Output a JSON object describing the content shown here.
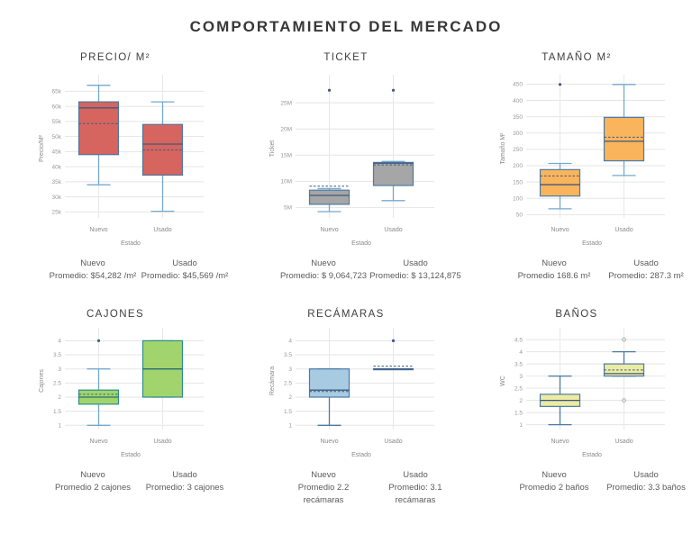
{
  "page": {
    "title": "COMPORTAMIENTO DEL MERCADO"
  },
  "chart_data": [
    {
      "type": "box",
      "title": "PRECIO/ M²",
      "y_label": "Precio/M²",
      "x_label": "Estado",
      "categories": [
        "Nuevo",
        "Usado"
      ],
      "y_min": 23000,
      "y_max": 69000,
      "y_ticks": [
        {
          "v": 25000,
          "label": "25k"
        },
        {
          "v": 30000,
          "label": "30k"
        },
        {
          "v": 35000,
          "label": "35k"
        },
        {
          "v": 40000,
          "label": "40k"
        },
        {
          "v": 45000,
          "label": "45k"
        },
        {
          "v": 50000,
          "label": "50k"
        },
        {
          "v": 55000,
          "label": "55k"
        },
        {
          "v": 60000,
          "label": "60k"
        },
        {
          "v": 65000,
          "label": "65k"
        }
      ],
      "colors": {
        "fill": "#d5655e",
        "stroke": "#53759c",
        "whisker": "#74a9cf",
        "median": "#3d5a80",
        "outlier_style": "dot"
      },
      "boxes": [
        {
          "category": "Nuevo",
          "whisker_low": 34000,
          "q1": 44000,
          "median": 59500,
          "q3": 61500,
          "whisker_high": 67000,
          "mean": 54282,
          "outliers": []
        },
        {
          "category": "Usado",
          "whisker_low": 25200,
          "q1": 37200,
          "median": 47500,
          "q3": 54000,
          "whisker_high": 61500,
          "mean": 45569,
          "outliers": []
        }
      ],
      "footer": [
        {
          "name": "Nuevo",
          "promedio": "Promedio: $54,282 /m²"
        },
        {
          "name": "Usado",
          "promedio": "Promedio: $45,569 /m²"
        }
      ]
    },
    {
      "type": "box",
      "title": "TICKET",
      "y_label": "Ticket",
      "x_label": "Estado",
      "categories": [
        "Nuevo",
        "Usado"
      ],
      "y_min": 3000000,
      "y_max": 29500000,
      "y_ticks": [
        {
          "v": 5000000,
          "label": "5M"
        },
        {
          "v": 10000000,
          "label": "10M"
        },
        {
          "v": 15000000,
          "label": "15M"
        },
        {
          "v": 20000000,
          "label": "20M"
        },
        {
          "v": 25000000,
          "label": "25M"
        }
      ],
      "colors": {
        "fill": "#a6a6a6",
        "stroke": "#4a7ba6",
        "whisker": "#74a9cf",
        "median": "#3d5a80",
        "outlier_style": "dot"
      },
      "boxes": [
        {
          "category": "Nuevo",
          "whisker_low": 4200000,
          "q1": 5600000,
          "median": 7300000,
          "q3": 8300000,
          "whisker_high": 8600000,
          "mean": 9064723,
          "outliers": [
            27400000
          ]
        },
        {
          "category": "Usado",
          "whisker_low": 6300000,
          "q1": 9200000,
          "median": 13450000,
          "q3": 13600000,
          "whisker_high": 13800000,
          "mean": 13124875,
          "outliers": [
            27400000
          ]
        }
      ],
      "footer": [
        {
          "name": "Nuevo",
          "promedio": "Promedio: $ 9,064,723"
        },
        {
          "name": "Usado",
          "promedio": "Promedio: $ 13,124,875"
        }
      ]
    },
    {
      "type": "box",
      "title": "TAMAÑO M²",
      "y_label": "Tamaño M²",
      "x_label": "Estado",
      "categories": [
        "Nuevo",
        "Usado"
      ],
      "y_min": 40,
      "y_max": 465,
      "y_ticks": [
        {
          "v": 50,
          "label": "50"
        },
        {
          "v": 100,
          "label": "100"
        },
        {
          "v": 150,
          "label": "150"
        },
        {
          "v": 200,
          "label": "200"
        },
        {
          "v": 250,
          "label": "250"
        },
        {
          "v": 300,
          "label": "300"
        },
        {
          "v": 350,
          "label": "350"
        },
        {
          "v": 400,
          "label": "400"
        },
        {
          "v": 450,
          "label": "450"
        }
      ],
      "colors": {
        "fill": "#f9b45c",
        "stroke": "#4a7ba6",
        "whisker": "#74a9cf",
        "median": "#3d5a80",
        "outlier_style": "dot"
      },
      "boxes": [
        {
          "category": "Nuevo",
          "whisker_low": 68,
          "q1": 107,
          "median": 142,
          "q3": 188,
          "whisker_high": 207,
          "mean": 168.6,
          "outliers": [
            449
          ]
        },
        {
          "category": "Usado",
          "whisker_low": 170,
          "q1": 215,
          "median": 275,
          "q3": 348,
          "whisker_high": 449,
          "mean": 287.3,
          "outliers": []
        }
      ],
      "footer": [
        {
          "name": "Nuevo",
          "promedio": "Promedio 168.6 m²"
        },
        {
          "name": "Usado",
          "promedio": "Promedio: 287.3 m²"
        }
      ]
    },
    {
      "type": "box",
      "title": "CAJONES",
      "y_label": "Cajones",
      "x_label": "Estado",
      "categories": [
        "Nuevo",
        "Usado"
      ],
      "y_min": 0.85,
      "y_max": 4.3,
      "y_ticks": [
        {
          "v": 1,
          "label": "1"
        },
        {
          "v": 1.5,
          "label": "1.5"
        },
        {
          "v": 2,
          "label": "2"
        },
        {
          "v": 2.5,
          "label": "2.5"
        },
        {
          "v": 3,
          "label": "3"
        },
        {
          "v": 3.5,
          "label": "3.5"
        },
        {
          "v": 4,
          "label": "4"
        }
      ],
      "colors": {
        "fill": "#a2d46e",
        "stroke": "#2e8b8b",
        "whisker": "#74a9cf",
        "median": "#2c6e6e",
        "outlier_style": "dot"
      },
      "boxes": [
        {
          "category": "Nuevo",
          "whisker_low": 1,
          "q1": 1.75,
          "median": 2,
          "q3": 2.25,
          "whisker_high": 3,
          "mean": 2.1,
          "outliers": [
            4
          ]
        },
        {
          "category": "Usado",
          "whisker_low": 2,
          "q1": 2,
          "median": 3,
          "q3": 4,
          "whisker_high": 4,
          "mean": 3,
          "outliers": []
        }
      ],
      "footer": [
        {
          "name": "Nuevo",
          "promedio": "Promedio 2 cajones"
        },
        {
          "name": "Usado",
          "promedio": "Promedio: 3 cajones"
        }
      ]
    },
    {
      "type": "box",
      "title": "RECÁMARAS",
      "y_label": "Recámara",
      "x_label": "Estado",
      "categories": [
        "Nuevo",
        "Usado"
      ],
      "y_min": 0.85,
      "y_max": 4.3,
      "y_ticks": [
        {
          "v": 1,
          "label": "1"
        },
        {
          "v": 1.5,
          "label": "1.5"
        },
        {
          "v": 2,
          "label": "2"
        },
        {
          "v": 2.5,
          "label": "2.5"
        },
        {
          "v": 3,
          "label": "3"
        },
        {
          "v": 3.5,
          "label": "3.5"
        },
        {
          "v": 4,
          "label": "4"
        }
      ],
      "colors": {
        "fill": "#a9cbe2",
        "stroke": "#4a7ba6",
        "whisker": "#4a7ba6",
        "median": "#3d5a80",
        "outlier_style": "dot"
      },
      "boxes": [
        {
          "category": "Nuevo",
          "whisker_low": 1,
          "q1": 2,
          "median": 2.25,
          "q3": 3,
          "whisker_high": 3,
          "mean": 2.2,
          "outliers": []
        },
        {
          "category": "Usado",
          "whisker_low": 3,
          "q1": 3,
          "median": 3,
          "q3": 3,
          "whisker_high": 3,
          "mean": 3.1,
          "outliers": [
            4
          ]
        }
      ],
      "footer": [
        {
          "name": "Nuevo",
          "promedio": "Promedio 2.2 recámaras"
        },
        {
          "name": "Usado",
          "promedio": "Promedio: 3.1 recámaras"
        }
      ]
    },
    {
      "type": "box",
      "title": "BAÑOS",
      "y_label": "WC",
      "x_label": "Estado",
      "categories": [
        "Nuevo",
        "Usado"
      ],
      "y_min": 0.8,
      "y_max": 4.8,
      "y_ticks": [
        {
          "v": 1,
          "label": "1"
        },
        {
          "v": 1.5,
          "label": "1.5"
        },
        {
          "v": 2,
          "label": "2"
        },
        {
          "v": 2.5,
          "label": "2.5"
        },
        {
          "v": 3,
          "label": "3"
        },
        {
          "v": 3.5,
          "label": "3.5"
        },
        {
          "v": 4,
          "label": "4"
        },
        {
          "v": 4.5,
          "label": "4.5"
        }
      ],
      "colors": {
        "fill": "#edeba3",
        "stroke": "#4a7ba6",
        "whisker": "#4a7ba6",
        "median": "#3d5a80",
        "outlier_style": "open"
      },
      "boxes": [
        {
          "category": "Nuevo",
          "whisker_low": 1,
          "q1": 1.75,
          "median": 2,
          "q3": 2.25,
          "whisker_high": 3,
          "mean": 2,
          "outliers": []
        },
        {
          "category": "Usado",
          "whisker_low": 3,
          "q1": 3,
          "median": 3.1,
          "q3": 3.5,
          "whisker_high": 4,
          "mean": 3.25,
          "outliers": [
            4.5,
            2
          ]
        }
      ],
      "footer": [
        {
          "name": "Nuevo",
          "promedio": "Promedio 2 baños"
        },
        {
          "name": "Usado",
          "promedio": "Promedio: 3.3 baños"
        }
      ]
    }
  ]
}
